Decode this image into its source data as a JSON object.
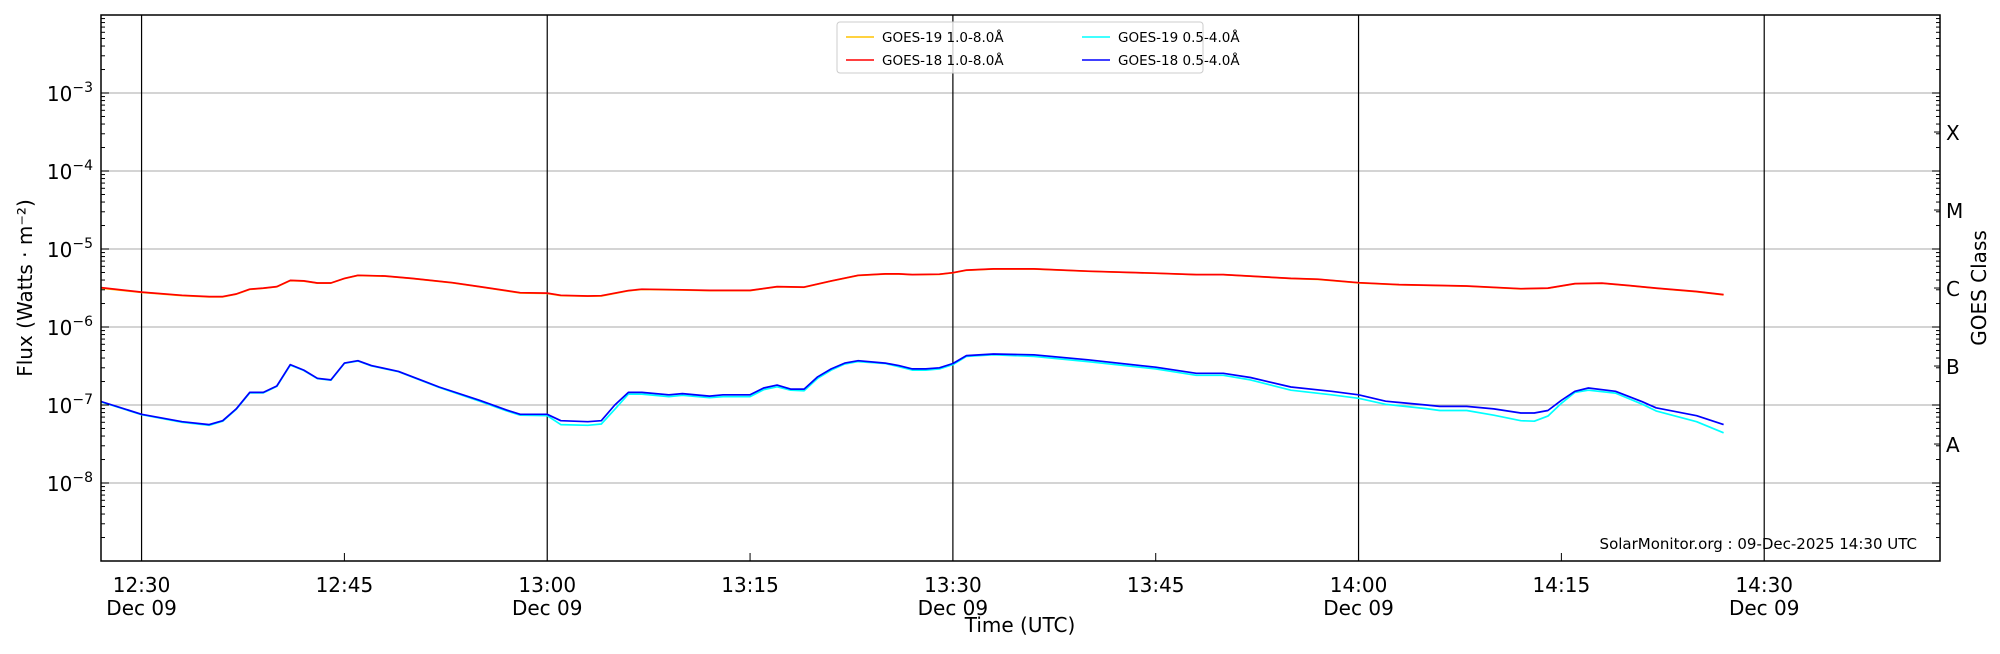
{
  "chart_data": {
    "type": "line",
    "xlabel": "Time (UTC)",
    "ylabel": "Flux (Watts · m⁻²)",
    "ylabel_right": "GOES Class",
    "yscale": "log",
    "ylim": [
      1e-09,
      0.01
    ],
    "xlim": [
      "12:27",
      "14:43"
    ],
    "y_ticks": [
      {
        "value": 1e-08,
        "base": "10",
        "exp": "−8"
      },
      {
        "value": 1e-07,
        "base": "10",
        "exp": "−7"
      },
      {
        "value": 1e-06,
        "base": "10",
        "exp": "−6"
      },
      {
        "value": 1e-05,
        "base": "10",
        "exp": "−5"
      },
      {
        "value": 0.0001,
        "base": "10",
        "exp": "−4"
      },
      {
        "value": 0.001,
        "base": "10",
        "exp": "−3"
      }
    ],
    "x_ticks": [
      {
        "time": "12:30",
        "label": "12:30",
        "date": "Dec 09",
        "major": true
      },
      {
        "time": "12:45",
        "label": "12:45",
        "date": "",
        "major": false
      },
      {
        "time": "13:00",
        "label": "13:00",
        "date": "Dec 09",
        "major": true
      },
      {
        "time": "13:15",
        "label": "13:15",
        "date": "",
        "major": false
      },
      {
        "time": "13:30",
        "label": "13:30",
        "date": "Dec 09",
        "major": true
      },
      {
        "time": "13:45",
        "label": "13:45",
        "date": "",
        "major": false
      },
      {
        "time": "14:00",
        "label": "14:00",
        "date": "Dec 09",
        "major": true
      },
      {
        "time": "14:15",
        "label": "14:15",
        "date": "",
        "major": false
      },
      {
        "time": "14:30",
        "label": "14:30",
        "date": "Dec 09",
        "major": true
      }
    ],
    "goes_classes": [
      {
        "label": "A",
        "value": 3.16e-08
      },
      {
        "label": "B",
        "value": 3.16e-07
      },
      {
        "label": "C",
        "value": 3.16e-06
      },
      {
        "label": "M",
        "value": 3.16e-05
      },
      {
        "label": "X",
        "value": 0.000316
      }
    ],
    "legend_position": "top-center",
    "series": [
      {
        "name": "GOES-19 1.0-8.0Å",
        "color": "#ffc400",
        "times": [
          "12:27",
          "12:30",
          "12:33",
          "12:35",
          "12:36",
          "12:37",
          "12:38",
          "12:39",
          "12:40",
          "12:41",
          "12:42",
          "12:43",
          "12:44",
          "12:45",
          "12:46",
          "12:48",
          "12:50",
          "12:53",
          "12:55",
          "12:58",
          "13:00",
          "13:01",
          "13:03",
          "13:04",
          "13:06",
          "13:07",
          "13:10",
          "13:12",
          "13:15",
          "13:17",
          "13:19",
          "13:21",
          "13:23",
          "13:25",
          "13:26",
          "13:27",
          "13:29",
          "13:30",
          "13:31",
          "13:33",
          "13:36",
          "13:40",
          "13:45",
          "13:48",
          "13:50",
          "13:55",
          "13:57",
          "14:00",
          "14:03",
          "14:08",
          "14:12",
          "14:14",
          "14:16",
          "14:18",
          "14:20",
          "14:22",
          "14:25",
          "14:27"
        ],
        "values": [
          3.15e-06,
          2.78e-06,
          2.53e-06,
          2.43e-06,
          2.43e-06,
          2.63e-06,
          3.03e-06,
          3.13e-06,
          3.28e-06,
          3.94e-06,
          3.88e-06,
          3.65e-06,
          3.65e-06,
          4.18e-06,
          4.58e-06,
          4.48e-06,
          4.18e-06,
          3.68e-06,
          3.28e-06,
          2.73e-06,
          2.7e-06,
          2.53e-06,
          2.48e-06,
          2.5e-06,
          2.91e-06,
          3.03e-06,
          2.98e-06,
          2.93e-06,
          2.93e-06,
          3.28e-06,
          3.23e-06,
          3.88e-06,
          4.58e-06,
          4.78e-06,
          4.78e-06,
          4.68e-06,
          4.73e-06,
          4.95e-06,
          5.34e-06,
          5.54e-06,
          5.54e-06,
          5.18e-06,
          4.88e-06,
          4.68e-06,
          4.68e-06,
          4.18e-06,
          4.08e-06,
          3.68e-06,
          3.48e-06,
          3.33e-06,
          3.08e-06,
          3.13e-06,
          3.58e-06,
          3.63e-06,
          3.38e-06,
          3.13e-06,
          2.83e-06,
          2.58e-06
        ]
      },
      {
        "name": "GOES-18 1.0-8.0Å",
        "color": "#ff0000",
        "times": [
          "12:27",
          "12:30",
          "12:33",
          "12:35",
          "12:36",
          "12:37",
          "12:38",
          "12:39",
          "12:40",
          "12:41",
          "12:42",
          "12:43",
          "12:44",
          "12:45",
          "12:46",
          "12:48",
          "12:50",
          "12:53",
          "12:55",
          "12:58",
          "13:00",
          "13:01",
          "13:03",
          "13:04",
          "13:06",
          "13:07",
          "13:10",
          "13:12",
          "13:15",
          "13:17",
          "13:19",
          "13:21",
          "13:23",
          "13:25",
          "13:26",
          "13:27",
          "13:29",
          "13:30",
          "13:31",
          "13:33",
          "13:36",
          "13:40",
          "13:45",
          "13:48",
          "13:50",
          "13:55",
          "13:57",
          "14:00",
          "14:03",
          "14:08",
          "14:12",
          "14:14",
          "14:16",
          "14:18",
          "14:20",
          "14:22",
          "14:25",
          "14:27"
        ],
        "values": [
          3.2e-06,
          2.8e-06,
          2.55e-06,
          2.45e-06,
          2.45e-06,
          2.65e-06,
          3.05e-06,
          3.15e-06,
          3.3e-06,
          3.96e-06,
          3.9e-06,
          3.67e-06,
          3.67e-06,
          4.2e-06,
          4.6e-06,
          4.5e-06,
          4.2e-06,
          3.7e-06,
          3.3e-06,
          2.75e-06,
          2.72e-06,
          2.55e-06,
          2.5e-06,
          2.52e-06,
          2.93e-06,
          3.05e-06,
          3e-06,
          2.95e-06,
          2.95e-06,
          3.3e-06,
          3.25e-06,
          3.9e-06,
          4.6e-06,
          4.8e-06,
          4.8e-06,
          4.7e-06,
          4.75e-06,
          4.97e-06,
          5.36e-06,
          5.56e-06,
          5.56e-06,
          5.2e-06,
          4.9e-06,
          4.7e-06,
          4.7e-06,
          4.2e-06,
          4.1e-06,
          3.7e-06,
          3.5e-06,
          3.35e-06,
          3.1e-06,
          3.15e-06,
          3.6e-06,
          3.65e-06,
          3.4e-06,
          3.15e-06,
          2.85e-06,
          2.6e-06
        ]
      },
      {
        "name": "GOES-19 0.5-4.0Å",
        "color": "#00ffff",
        "times": [
          "12:27",
          "12:30",
          "12:33",
          "12:35",
          "12:36",
          "12:37",
          "12:38",
          "12:39",
          "12:40",
          "12:41",
          "12:42",
          "12:43",
          "12:44",
          "12:45",
          "12:46",
          "12:47",
          "12:49",
          "12:52",
          "12:55",
          "12:57",
          "12:58",
          "13:00",
          "13:01",
          "13:03",
          "13:04",
          "13:05",
          "13:06",
          "13:07",
          "13:09",
          "13:10",
          "13:12",
          "13:13",
          "13:15",
          "13:16",
          "13:17",
          "13:18",
          "13:19",
          "13:20",
          "13:21",
          "13:22",
          "13:23",
          "13:25",
          "13:26",
          "13:27",
          "13:28",
          "13:29",
          "13:30",
          "13:31",
          "13:33",
          "13:36",
          "13:40",
          "13:45",
          "13:48",
          "13:50",
          "13:52",
          "13:55",
          "13:58",
          "14:00",
          "14:02",
          "14:05",
          "14:06",
          "14:08",
          "14:10",
          "14:12",
          "14:13",
          "14:14",
          "14:15",
          "14:16",
          "14:17",
          "14:19",
          "14:21",
          "14:22",
          "14:25",
          "14:27"
        ],
        "values": [
          1.1e-07,
          7.5e-08,
          6e-08,
          5.5e-08,
          6.2e-08,
          8.8e-08,
          1.43e-07,
          1.43e-07,
          1.73e-07,
          3.25e-07,
          2.77e-07,
          2.18e-07,
          2.08e-07,
          3.42e-07,
          3.66e-07,
          3.17e-07,
          2.67e-07,
          1.68e-07,
          1.12e-07,
          8.4e-08,
          7.4e-08,
          7.3e-08,
          5.6e-08,
          5.5e-08,
          5.7e-08,
          8.8e-08,
          1.38e-07,
          1.38e-07,
          1.28e-07,
          1.33e-07,
          1.24e-07,
          1.28e-07,
          1.28e-07,
          1.57e-07,
          1.71e-07,
          1.55e-07,
          1.52e-07,
          2.2e-07,
          2.8e-07,
          3.35e-07,
          3.6e-07,
          3.4e-07,
          3.1e-07,
          2.8e-07,
          2.8e-07,
          2.9e-07,
          3.3e-07,
          4.2e-07,
          4.4e-07,
          4.2e-07,
          3.6e-07,
          2.9e-07,
          2.4e-07,
          2.4e-07,
          2.1e-07,
          1.55e-07,
          1.35e-07,
          1.22e-07,
          1.02e-07,
          9e-08,
          8.5e-08,
          8.5e-08,
          7.4e-08,
          6.3e-08,
          6.2e-08,
          7.2e-08,
          1.05e-07,
          1.45e-07,
          1.55e-07,
          1.42e-07,
          1.02e-07,
          8.4e-08,
          6.1e-08,
          4.4e-08
        ]
      },
      {
        "name": "GOES-18 0.5-4.0Å",
        "color": "#0000ff",
        "times": [
          "12:27",
          "12:30",
          "12:33",
          "12:35",
          "12:36",
          "12:37",
          "12:38",
          "12:39",
          "12:40",
          "12:41",
          "12:42",
          "12:43",
          "12:44",
          "12:45",
          "12:46",
          "12:47",
          "12:49",
          "12:52",
          "12:55",
          "12:57",
          "12:58",
          "13:00",
          "13:01",
          "13:03",
          "13:04",
          "13:05",
          "13:06",
          "13:07",
          "13:09",
          "13:10",
          "13:12",
          "13:13",
          "13:15",
          "13:16",
          "13:17",
          "13:18",
          "13:19",
          "13:20",
          "13:21",
          "13:22",
          "13:23",
          "13:25",
          "13:26",
          "13:27",
          "13:28",
          "13:29",
          "13:30",
          "13:31",
          "13:33",
          "13:36",
          "13:40",
          "13:45",
          "13:48",
          "13:50",
          "13:52",
          "13:55",
          "13:58",
          "14:00",
          "14:02",
          "14:05",
          "14:06",
          "14:08",
          "14:10",
          "14:12",
          "14:13",
          "14:14",
          "14:15",
          "14:16",
          "14:17",
          "14:19",
          "14:21",
          "14:22",
          "14:25",
          "14:27"
        ],
        "values": [
          1.11e-07,
          7.6e-08,
          6.1e-08,
          5.6e-08,
          6.3e-08,
          8.9e-08,
          1.45e-07,
          1.45e-07,
          1.75e-07,
          3.3e-07,
          2.8e-07,
          2.2e-07,
          2.1e-07,
          3.45e-07,
          3.7e-07,
          3.2e-07,
          2.7e-07,
          1.7e-07,
          1.15e-07,
          8.6e-08,
          7.6e-08,
          7.6e-08,
          6.3e-08,
          6.1e-08,
          6.3e-08,
          1e-07,
          1.45e-07,
          1.45e-07,
          1.35e-07,
          1.4e-07,
          1.3e-07,
          1.35e-07,
          1.35e-07,
          1.65e-07,
          1.8e-07,
          1.6e-07,
          1.6e-07,
          2.3e-07,
          2.9e-07,
          3.45e-07,
          3.7e-07,
          3.45e-07,
          3.2e-07,
          2.9e-07,
          2.9e-07,
          3e-07,
          3.4e-07,
          4.3e-07,
          4.5e-07,
          4.4e-07,
          3.8e-07,
          3.05e-07,
          2.55e-07,
          2.55e-07,
          2.25e-07,
          1.7e-07,
          1.5e-07,
          1.35e-07,
          1.12e-07,
          1e-07,
          9.6e-08,
          9.6e-08,
          8.9e-08,
          7.9e-08,
          7.9e-08,
          8.5e-08,
          1.15e-07,
          1.5e-07,
          1.65e-07,
          1.5e-07,
          1.1e-07,
          9.2e-08,
          7.3e-08,
          5.6e-08
        ]
      }
    ]
  },
  "footer": "SolarMonitor.org : 09-Dec-2025 14:30 UTC"
}
